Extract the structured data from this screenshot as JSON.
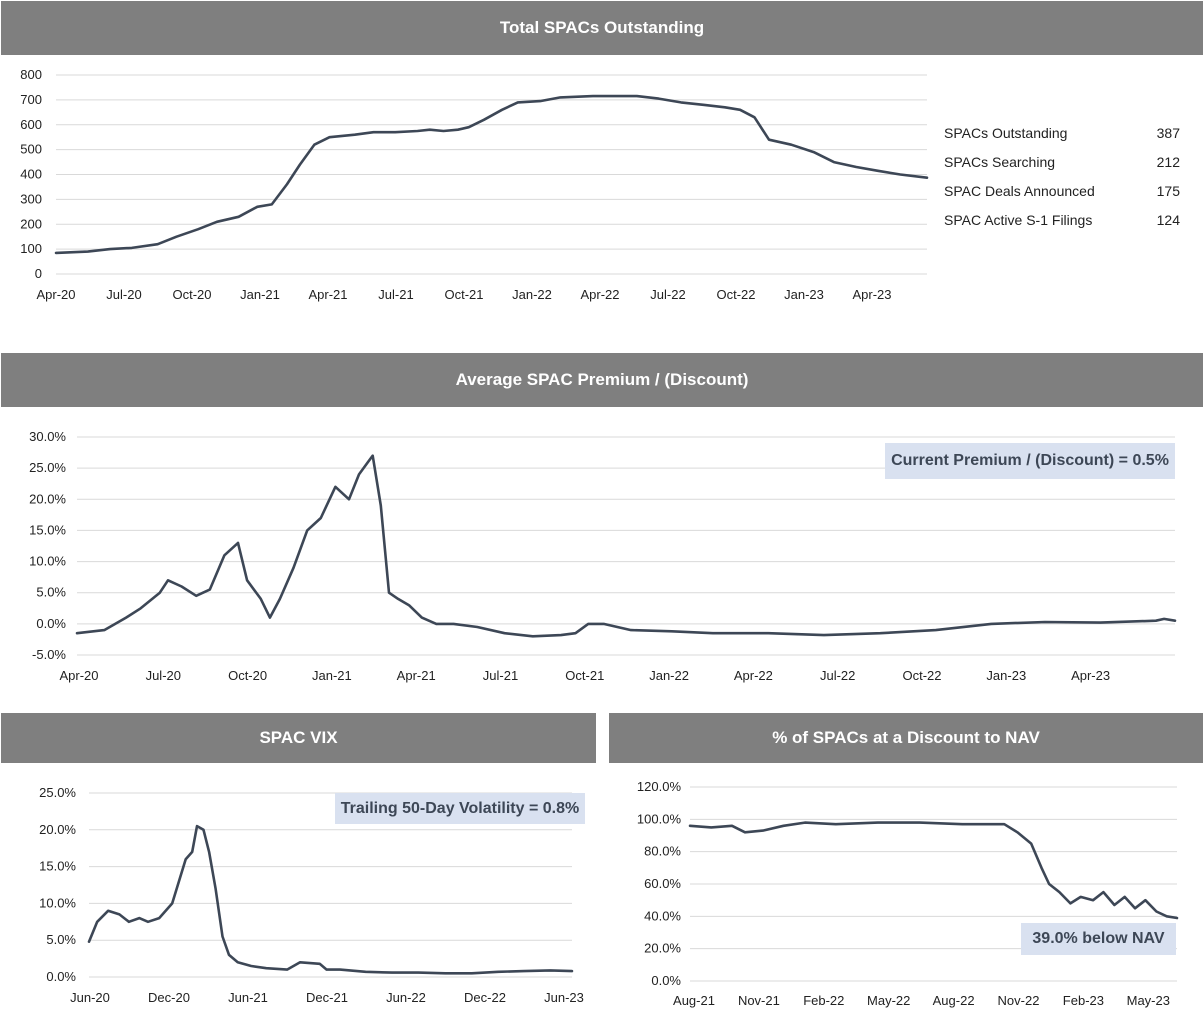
{
  "colors": {
    "banner": "#7f7f7f",
    "line": "#3d4756",
    "grid": "#d9d9d9",
    "callout_bg": "#d9e1f0"
  },
  "stats": [
    {
      "label": "SPACs Outstanding",
      "value": "387"
    },
    {
      "label": "SPACs Searching",
      "value": "212"
    },
    {
      "label": "SPAC Deals Announced",
      "value": "175"
    },
    {
      "label": "SPAC Active S-1 Filings",
      "value": "124"
    }
  ],
  "chart_data": [
    {
      "id": "outstanding",
      "type": "line",
      "title": "Total SPACs Outstanding",
      "x_ticks": [
        "Apr-20",
        "Jul-20",
        "Oct-20",
        "Jan-21",
        "Apr-21",
        "Jul-21",
        "Oct-21",
        "Jan-22",
        "Apr-22",
        "Jul-22",
        "Oct-22",
        "Jan-23",
        "Apr-23"
      ],
      "y_ticks": [
        "800",
        "700",
        "600",
        "500",
        "400",
        "300",
        "200",
        "100",
        "0"
      ],
      "ylim": [
        0,
        800
      ],
      "xlim": [
        "2020-04-01",
        "2023-07-22"
      ],
      "grid": true,
      "series": [
        {
          "x": [
            "2020-04-01",
            "2020-05-15",
            "2020-06-15",
            "2020-07-15",
            "2020-08-20",
            "2020-09-15",
            "2020-10-15",
            "2020-11-10",
            "2020-12-10",
            "2021-01-05",
            "2021-01-25",
            "2021-02-15",
            "2021-03-05",
            "2021-03-25",
            "2021-04-15",
            "2021-05-20",
            "2021-06-15",
            "2021-07-15",
            "2021-08-15",
            "2021-09-01",
            "2021-09-20",
            "2021-10-10",
            "2021-10-25",
            "2021-11-15",
            "2021-12-10",
            "2022-01-01",
            "2022-02-01",
            "2022-03-01",
            "2022-04-15",
            "2022-05-15",
            "2022-06-15",
            "2022-07-15",
            "2022-08-15",
            "2022-09-15",
            "2022-10-15",
            "2022-11-05",
            "2022-11-25",
            "2022-12-15",
            "2023-01-15",
            "2023-02-15",
            "2023-03-15",
            "2023-04-15",
            "2023-05-15",
            "2023-06-15",
            "2023-07-22"
          ],
          "y": [
            85,
            90,
            100,
            105,
            120,
            150,
            180,
            210,
            230,
            270,
            280,
            360,
            440,
            520,
            550,
            560,
            570,
            570,
            575,
            580,
            575,
            580,
            590,
            620,
            660,
            690,
            695,
            710,
            715,
            715,
            715,
            705,
            690,
            680,
            670,
            660,
            630,
            540,
            520,
            490,
            450,
            430,
            415,
            400,
            387
          ]
        }
      ]
    },
    {
      "id": "premium",
      "type": "line",
      "title": "Average SPAC Premium / (Discount)",
      "x_ticks": [
        "Apr-20",
        "Jul-20",
        "Oct-20",
        "Jan-21",
        "Apr-21",
        "Jul-21",
        "Oct-21",
        "Jan-22",
        "Apr-22",
        "Jul-22",
        "Oct-22",
        "Jan-23",
        "Apr-23"
      ],
      "y_ticks": [
        "30.0%",
        "25.0%",
        "20.0%",
        "15.0%",
        "10.0%",
        "5.0%",
        "0.0%",
        "-5.0%"
      ],
      "ylim": [
        -5,
        30
      ],
      "xlim": [
        "2020-04-01",
        "2023-07-22"
      ],
      "grid": true,
      "annotation": "Current Premium / (Discount) = 0.5%",
      "series": [
        {
          "x": [
            "2020-04-01",
            "2020-05-01",
            "2020-05-25",
            "2020-06-10",
            "2020-07-01",
            "2020-07-10",
            "2020-07-25",
            "2020-08-10",
            "2020-08-25",
            "2020-09-10",
            "2020-09-25",
            "2020-10-05",
            "2020-10-20",
            "2020-10-30",
            "2020-11-10",
            "2020-11-25",
            "2020-12-10",
            "2020-12-25",
            "2021-01-10",
            "2021-01-25",
            "2021-02-05",
            "2021-02-15",
            "2021-02-20",
            "2021-03-01",
            "2021-03-10",
            "2021-03-20",
            "2021-04-01",
            "2021-04-15",
            "2021-05-01",
            "2021-05-20",
            "2021-06-15",
            "2021-07-15",
            "2021-08-15",
            "2021-09-15",
            "2021-10-01",
            "2021-10-15",
            "2021-11-01",
            "2021-12-01",
            "2022-01-15",
            "2022-03-01",
            "2022-05-01",
            "2022-07-01",
            "2022-09-01",
            "2022-11-01",
            "2023-01-01",
            "2023-03-01",
            "2023-05-01",
            "2023-07-01",
            "2023-07-10",
            "2023-07-22"
          ],
          "y": [
            -1.5,
            -1,
            1,
            2.5,
            5,
            7,
            6,
            4.5,
            5.5,
            11,
            13,
            7,
            4,
            1,
            4,
            9,
            15,
            17,
            22,
            20,
            24,
            26,
            27,
            19,
            5,
            4,
            3,
            1,
            0,
            0,
            -0.5,
            -1.5,
            -2,
            -1.8,
            -1.5,
            0,
            0,
            -1,
            -1.2,
            -1.5,
            -1.5,
            -1.8,
            -1.5,
            -1,
            0,
            0.3,
            0.2,
            0.5,
            0.8,
            0.5
          ]
        }
      ]
    },
    {
      "id": "vix",
      "type": "line",
      "title": "SPAC VIX",
      "x_ticks": [
        "Jun-20",
        "Dec-20",
        "Jun-21",
        "Dec-21",
        "Jun-22",
        "Dec-22",
        "Jun-23"
      ],
      "y_ticks": [
        "25.0%",
        "20.0%",
        "15.0%",
        "10.0%",
        "5.0%",
        "0.0%"
      ],
      "ylim": [
        0,
        25
      ],
      "xlim": [
        "2020-06-01",
        "2023-06-20"
      ],
      "grid": true,
      "annotation": "Trailing 50-Day Volatility = 0.8%",
      "series": [
        {
          "x": [
            "2020-06-01",
            "2020-06-20",
            "2020-07-15",
            "2020-08-10",
            "2020-09-01",
            "2020-09-25",
            "2020-10-15",
            "2020-11-10",
            "2020-12-10",
            "2021-01-10",
            "2021-01-25",
            "2021-02-05",
            "2021-02-20",
            "2021-03-05",
            "2021-03-20",
            "2021-04-05",
            "2021-04-20",
            "2021-05-10",
            "2021-06-10",
            "2021-07-15",
            "2021-09-01",
            "2021-10-01",
            "2021-11-15",
            "2021-12-01",
            "2022-01-01",
            "2022-03-01",
            "2022-05-01",
            "2022-07-01",
            "2022-09-01",
            "2022-11-01",
            "2023-01-01",
            "2023-03-01",
            "2023-05-01",
            "2023-06-20"
          ],
          "y": [
            4.8,
            7.5,
            9,
            8.5,
            7.5,
            8,
            7.5,
            8,
            10,
            16,
            17,
            20.5,
            20,
            17,
            12,
            5.5,
            3,
            2,
            1.5,
            1.2,
            1,
            2,
            1.8,
            1,
            1,
            0.7,
            0.6,
            0.6,
            0.5,
            0.5,
            0.7,
            0.8,
            0.9,
            0.8
          ]
        }
      ]
    },
    {
      "id": "discount",
      "type": "line",
      "title": "% of SPACs at a Discount to NAV",
      "x_ticks": [
        "Aug-21",
        "Nov-21",
        "Feb-22",
        "May-22",
        "Aug-22",
        "Nov-22",
        "Feb-23",
        "May-23"
      ],
      "y_ticks": [
        "120.0%",
        "100.0%",
        "80.0%",
        "60.0%",
        "40.0%",
        "20.0%",
        "0.0%"
      ],
      "ylim": [
        0,
        120
      ],
      "xlim": [
        "2021-08-01",
        "2023-07-10"
      ],
      "grid": true,
      "annotation": "39.0% below NAV",
      "series": [
        {
          "x": [
            "2021-08-01",
            "2021-09-01",
            "2021-10-01",
            "2021-10-20",
            "2021-11-15",
            "2021-12-15",
            "2022-01-15",
            "2022-03-01",
            "2022-05-01",
            "2022-07-01",
            "2022-09-01",
            "2022-10-15",
            "2022-11-01",
            "2022-11-20",
            "2022-12-10",
            "2022-12-25",
            "2023-01-05",
            "2023-01-20",
            "2023-02-05",
            "2023-02-20",
            "2023-03-10",
            "2023-03-25",
            "2023-04-10",
            "2023-04-25",
            "2023-05-10",
            "2023-05-25",
            "2023-06-10",
            "2023-06-25",
            "2023-07-10"
          ],
          "y": [
            96,
            95,
            96,
            92,
            93,
            96,
            98,
            97,
            98,
            98,
            97,
            97,
            97,
            92,
            85,
            70,
            60,
            55,
            48,
            52,
            50,
            55,
            47,
            52,
            45,
            50,
            43,
            40,
            39
          ]
        }
      ]
    }
  ]
}
